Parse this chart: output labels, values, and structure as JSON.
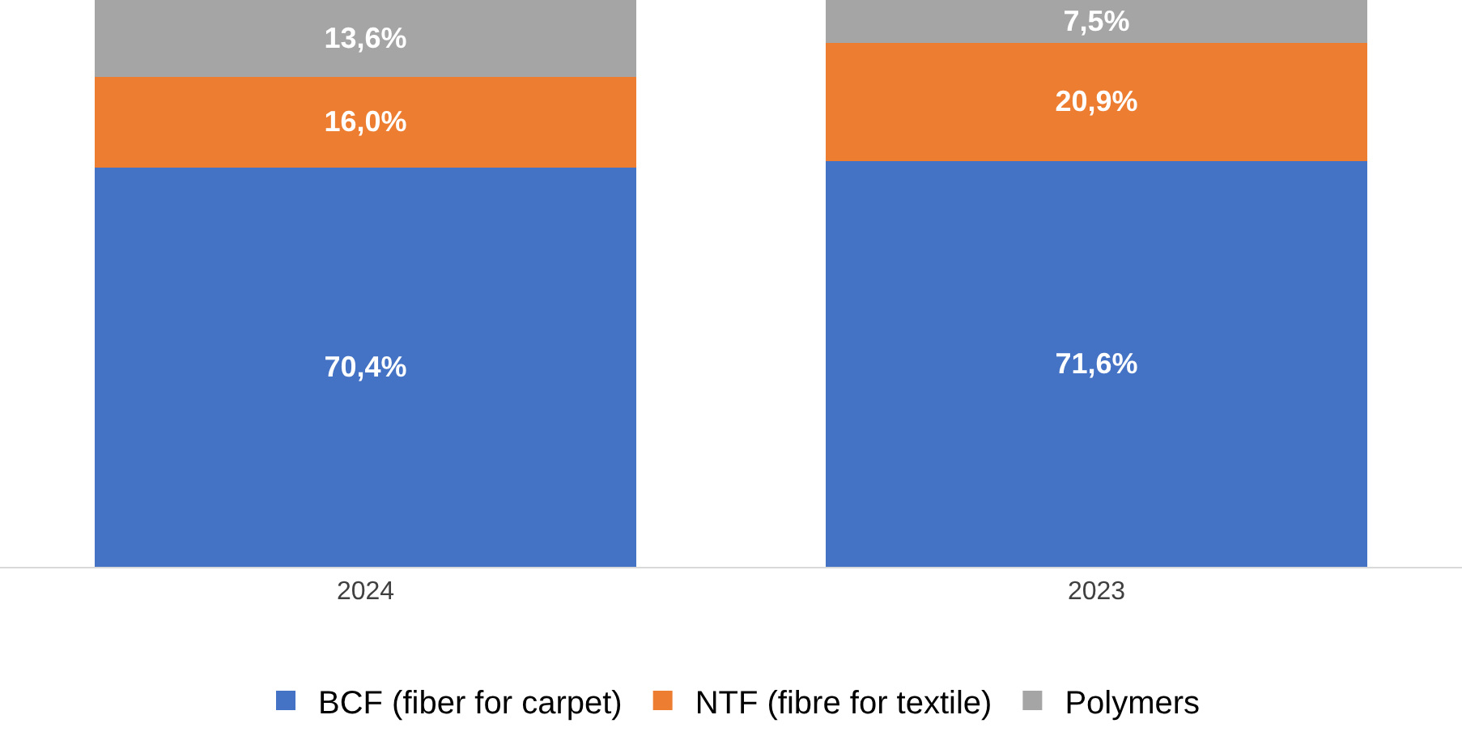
{
  "chart_data": {
    "type": "bar",
    "stacked": true,
    "categories": [
      "2024",
      "2023"
    ],
    "ylim": [
      0,
      100
    ],
    "tick_labels": "x",
    "legend": "bottom",
    "series": [
      {
        "name": "BCF (fiber for carpet)",
        "color": "#4472c4",
        "values": [
          70.4,
          71.6
        ],
        "value_labels": [
          "70,4%",
          "71,6%"
        ]
      },
      {
        "name": "NTF (fibre for textile)",
        "color": "#ed7d31",
        "values": [
          16.0,
          20.9
        ],
        "value_labels": [
          "16,0%",
          "20,9%"
        ]
      },
      {
        "name": "Polymers",
        "color": "#a5a5a5",
        "values": [
          13.6,
          7.5
        ],
        "value_labels": [
          "13,6%",
          "7,5%"
        ]
      }
    ]
  }
}
